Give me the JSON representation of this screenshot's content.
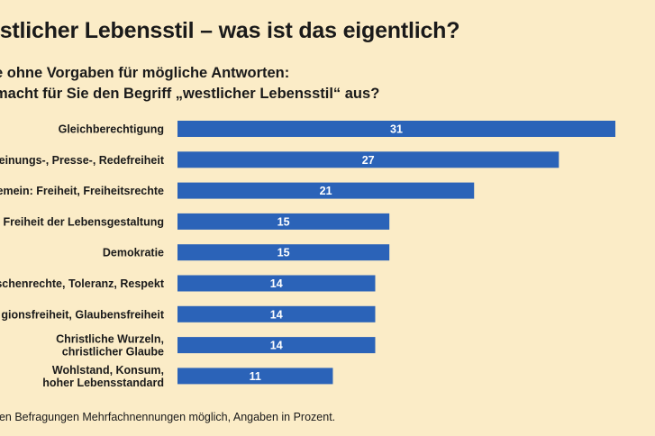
{
  "title": "estlicher Lebensstil – was ist das eigentlich?",
  "subtitle": {
    "line1": "e ohne Vorgaben für mögliche Antworten:",
    "line2": "macht für Sie den Begriff „westlicher Lebensstil“ aus?"
  },
  "footnote": "den Befragungen Mehrfachnennungen möglich, Angaben in Prozent.",
  "colors": {
    "background": "#fbecc7",
    "bar": "#2b63b8",
    "value_label": "#ffffff",
    "text": "#1a1a1a"
  },
  "chart_data": {
    "type": "bar",
    "orientation": "horizontal",
    "categories": [
      [
        "Gleichberechtigung"
      ],
      [
        "leinungs-, Presse-, Redefreiheit"
      ],
      [
        "emein: Freiheit, Freiheitsrechte"
      ],
      [
        "Freiheit der Lebensgestaltung"
      ],
      [
        "Demokratie"
      ],
      [
        "schenrechte, Toleranz, Respekt"
      ],
      [
        "gionsfreiheit, Glaubensfreiheit"
      ],
      [
        "Christliche Wurzeln,",
        "christlicher Glaube"
      ],
      [
        "Wohlstand, Konsum,",
        "hoher Lebensstandard"
      ]
    ],
    "values": [
      31,
      27,
      21,
      15,
      15,
      14,
      14,
      14,
      11
    ],
    "unit": "%",
    "data_labels": true,
    "grid": false,
    "xlim": [
      0,
      31
    ]
  }
}
